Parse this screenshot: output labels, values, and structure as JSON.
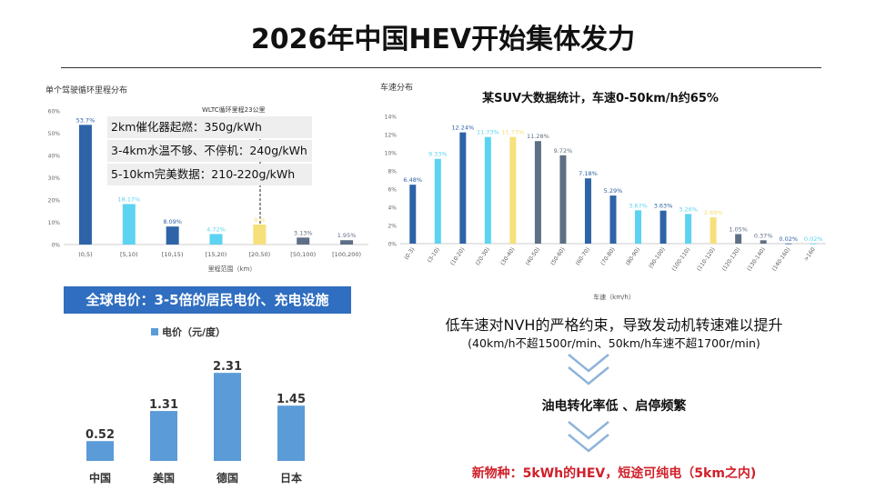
{
  "page": {
    "title": "2026年中国HEV开始集体发力"
  },
  "trip_chart": {
    "title": "单个驾驶循环里程分布",
    "wltc_label": "WLTC循环里程23公里",
    "xlabel": "里程范围（km）",
    "info_lines": [
      "2km催化器起燃：350g/kWh",
      "3-4km水温不够、不停机：240g/kWh",
      "5-10km完美数据：210-220g/kWh"
    ]
  },
  "speed_chart": {
    "title": "车速分布",
    "headline": "某SUV大数据统计，车速0-50km/h约65%",
    "xlabel": "车速（km/h）"
  },
  "price_chart": {
    "banner": "全球电价：3-5倍的居民电价、充电设施",
    "legend": "电价（元/度）"
  },
  "flow": {
    "line1": "低车速对NVH的严格约束，导致发动机转速难以提升",
    "line2": "(40km/h不超1500r/min、50km/h车速不超1700r/min)",
    "step2": "油电转化率低 、启停频繁",
    "step3": "新物种：5kWh的HEV，短途可纯电（5km之内)"
  },
  "colors": {
    "dark_blue": "#2e63a8",
    "light_blue": "#5cd3f0",
    "yellow": "#f6e07a",
    "gray_blue": "#5f6f85",
    "price_blue": "#5b9bd8",
    "banner_blue": "#2f6ec0",
    "red": "#d0202a",
    "arrow": "#8fb3d9"
  },
  "chart_data": [
    {
      "type": "bar",
      "title": "单个驾驶循环里程分布",
      "xlabel": "里程范围（km）",
      "categories": [
        "(0,5)",
        "[5,10)",
        "[10,15)",
        "[15,20)",
        "[20,50)",
        "[50,100)",
        "[100,200)"
      ],
      "values": [
        53.74,
        18.17,
        8.09,
        4.72,
        9.0,
        3.13,
        1.95
      ],
      "value_labels": [
        "53.7%",
        "18.17%",
        "8.09%",
        "4.72%",
        "9.%",
        "3.13%",
        "1.95%"
      ],
      "colors": [
        "dark",
        "light",
        "dark",
        "light",
        "yellow",
        "gray",
        "gray"
      ],
      "ylim": [
        0,
        60
      ],
      "yticks": [
        "0%",
        "10%",
        "20%",
        "30%",
        "40%",
        "50%",
        "60%"
      ]
    },
    {
      "type": "bar",
      "title": "车速分布",
      "xlabel": "车速（km/h）",
      "categories": [
        "(0-3)",
        "(3-10)",
        "(10-20)",
        "(20-30)",
        "(30-40)",
        "(40-50)",
        "(50-60)",
        "(60-70)",
        "(70-80)",
        "(80-90)",
        "(90-100)",
        "(100-110)",
        "(110-120)",
        "(120-130)",
        "(130-140)",
        "(140-160)",
        ">160"
      ],
      "values": [
        6.48,
        9.33,
        12.24,
        11.73,
        11.73,
        11.28,
        9.72,
        7.18,
        5.29,
        3.67,
        3.63,
        3.26,
        2.89,
        1.05,
        0.37,
        0.02,
        0.02
      ],
      "value_labels": [
        "6.48%",
        "9.33%",
        "12.24%",
        "11.73%",
        "11.73%",
        "11.28%",
        "9.72%",
        "7.18%",
        "5.29%",
        "3.67%",
        "3.63%",
        "3.26%",
        "2.89%",
        "1.05%",
        "0.37%",
        "0.02%",
        "0.02%"
      ],
      "colors": [
        "dark",
        "light",
        "dark",
        "light",
        "yellow",
        "gray",
        "gray",
        "dark",
        "dark",
        "light",
        "dark",
        "light",
        "yellow",
        "gray",
        "gray",
        "dark",
        "light"
      ],
      "ylim": [
        0,
        14
      ],
      "yticks": [
        "0%",
        "2%",
        "4%",
        "6%",
        "8%",
        "10%",
        "12%",
        "14%"
      ]
    },
    {
      "type": "bar",
      "title": "电价（元/度）",
      "categories": [
        "中国",
        "美国",
        "德国",
        "日本"
      ],
      "values": [
        0.52,
        1.31,
        2.31,
        1.45
      ],
      "value_labels": [
        "0.52",
        "1.31",
        "2.31",
        "1.45"
      ],
      "ylim": [
        0,
        2.6
      ]
    }
  ]
}
